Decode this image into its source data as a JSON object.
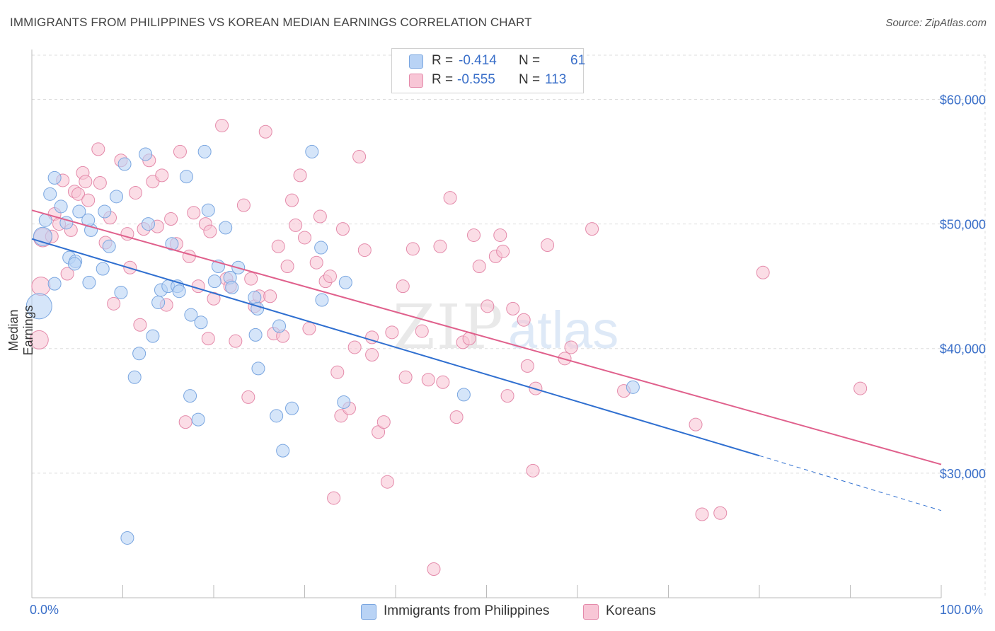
{
  "title": "IMMIGRANTS FROM PHILIPPINES VS KOREAN MEDIAN EARNINGS CORRELATION CHART",
  "source": "Source: ZipAtlas.com",
  "watermark": "ZIPatlas",
  "colors": {
    "blue_fill": "#b9d3f5",
    "blue_stroke": "#7aa6e0",
    "blue_line": "#2f6fd0",
    "pink_fill": "#f8c6d6",
    "pink_stroke": "#e48aaa",
    "pink_line": "#e0608c",
    "axis_text": "#3a6fc9",
    "grid": "#dddddd"
  },
  "legend": {
    "row1": {
      "r_label": "R =",
      "r_value": "-0.414",
      "n_label": "N =",
      "n_value": "61"
    },
    "row2": {
      "r_label": "R =",
      "r_value": "-0.555",
      "n_label": "N =",
      "n_value": "113"
    }
  },
  "bottom_legend": {
    "series1": "Immigrants from Philippines",
    "series2": "Koreans"
  },
  "chart_data": {
    "type": "scatter",
    "title": "IMMIGRANTS FROM PHILIPPINES VS KOREAN MEDIAN EARNINGS CORRELATION CHART",
    "xlabel": "",
    "ylabel": "Median Earnings",
    "x_tick_labels": [
      "0.0%",
      "100.0%"
    ],
    "y_tick_labels": [
      "$30,000",
      "$40,000",
      "$50,000",
      "$60,000"
    ],
    "y_ticks": [
      30000,
      40000,
      50000,
      60000
    ],
    "xlim": [
      0,
      100
    ],
    "ylim": [
      20000,
      64000
    ],
    "grid": "horizontal dashed",
    "legend_position": "top-center",
    "series": [
      {
        "name": "Immigrants from Philippines",
        "r": -0.414,
        "n": 61,
        "trend": {
          "x0": 0,
          "y0": 48800,
          "x1": 80,
          "y1": 31400,
          "dashed_to_x": 100,
          "dashed_to_y": 27000
        },
        "points": [
          [
            1.2,
            49000,
            2
          ],
          [
            0.8,
            43400,
            3
          ],
          [
            1.5,
            50300,
            1
          ],
          [
            2.0,
            52400,
            1
          ],
          [
            2.5,
            53700,
            1
          ],
          [
            3.2,
            51400,
            1
          ],
          [
            3.8,
            50100,
            1
          ],
          [
            4.1,
            47300,
            1
          ],
          [
            4.8,
            47000,
            1
          ],
          [
            2.5,
            45200,
            1
          ],
          [
            5.2,
            51000,
            1
          ],
          [
            6.5,
            49500,
            1
          ],
          [
            6.2,
            50300,
            1
          ],
          [
            7.8,
            46400,
            1
          ],
          [
            8.5,
            48200,
            1
          ],
          [
            8.0,
            51000,
            1
          ],
          [
            9.3,
            52200,
            1
          ],
          [
            10.2,
            54800,
            1
          ],
          [
            12.5,
            55600,
            1
          ],
          [
            12.8,
            50000,
            1
          ],
          [
            9.8,
            44500,
            1
          ],
          [
            6.3,
            45300,
            1
          ],
          [
            4.7,
            46800,
            1
          ],
          [
            13.9,
            43700,
            1
          ],
          [
            14.2,
            44700,
            1
          ],
          [
            15.0,
            45000,
            1
          ],
          [
            16.0,
            45000,
            1
          ],
          [
            16.2,
            44600,
            1
          ],
          [
            15.4,
            48400,
            1
          ],
          [
            17.0,
            53800,
            1
          ],
          [
            19.0,
            55800,
            1
          ],
          [
            19.4,
            51100,
            1
          ],
          [
            21.3,
            49700,
            1
          ],
          [
            20.5,
            46600,
            1
          ],
          [
            20.1,
            45400,
            1
          ],
          [
            21.8,
            45700,
            1
          ],
          [
            22.0,
            44900,
            1
          ],
          [
            22.7,
            46500,
            1
          ],
          [
            17.5,
            42700,
            1
          ],
          [
            18.6,
            42100,
            1
          ],
          [
            13.3,
            41000,
            1
          ],
          [
            11.8,
            39600,
            1
          ],
          [
            11.3,
            37700,
            1
          ],
          [
            17.4,
            36200,
            1
          ],
          [
            18.3,
            34300,
            1
          ],
          [
            24.5,
            44100,
            1
          ],
          [
            24.8,
            43200,
            1
          ],
          [
            24.6,
            41100,
            1
          ],
          [
            24.9,
            38400,
            1
          ],
          [
            27.2,
            41800,
            1
          ],
          [
            26.9,
            34600,
            1
          ],
          [
            27.6,
            31800,
            1
          ],
          [
            28.6,
            35200,
            1
          ],
          [
            30.8,
            55800,
            1
          ],
          [
            31.8,
            48100,
            1
          ],
          [
            31.9,
            43900,
            1
          ],
          [
            34.5,
            45300,
            1
          ],
          [
            34.3,
            35700,
            1
          ],
          [
            47.5,
            36300,
            1
          ],
          [
            66.1,
            36900,
            1
          ],
          [
            10.5,
            24800,
            1
          ]
        ]
      },
      {
        "name": "Koreans",
        "r": -0.555,
        "n": 113,
        "trend": {
          "x0": 0,
          "y0": 51100,
          "x1": 100,
          "y1": 30700
        },
        "points": [
          [
            0.8,
            40700,
            2
          ],
          [
            1.0,
            45000,
            2
          ],
          [
            1.2,
            48900,
            2
          ],
          [
            2.2,
            49000,
            1
          ],
          [
            2.5,
            50800,
            1
          ],
          [
            3.0,
            50000,
            1
          ],
          [
            3.4,
            53500,
            1
          ],
          [
            3.9,
            46000,
            1
          ],
          [
            4.3,
            49500,
            1
          ],
          [
            4.7,
            52600,
            1
          ],
          [
            5.1,
            52400,
            1
          ],
          [
            5.6,
            54100,
            1
          ],
          [
            5.9,
            53400,
            1
          ],
          [
            6.2,
            51900,
            1
          ],
          [
            7.5,
            53300,
            1
          ],
          [
            7.3,
            56000,
            1
          ],
          [
            8.1,
            48500,
            1
          ],
          [
            8.6,
            50500,
            1
          ],
          [
            9.0,
            43600,
            1
          ],
          [
            9.8,
            55100,
            1
          ],
          [
            10.5,
            49200,
            1
          ],
          [
            10.8,
            46500,
            1
          ],
          [
            11.4,
            52500,
            1
          ],
          [
            11.9,
            41900,
            1
          ],
          [
            12.3,
            49600,
            1
          ],
          [
            12.9,
            55100,
            1
          ],
          [
            13.3,
            53400,
            1
          ],
          [
            13.8,
            49800,
            1
          ],
          [
            14.3,
            53900,
            1
          ],
          [
            14.8,
            43500,
            1
          ],
          [
            15.3,
            50400,
            1
          ],
          [
            15.9,
            48400,
            1
          ],
          [
            16.3,
            55800,
            1
          ],
          [
            16.9,
            34100,
            1
          ],
          [
            17.3,
            47400,
            1
          ],
          [
            17.8,
            50900,
            1
          ],
          [
            18.3,
            45000,
            1
          ],
          [
            19.1,
            50000,
            1
          ],
          [
            19.4,
            40800,
            1
          ],
          [
            19.6,
            49400,
            1
          ],
          [
            20.0,
            44000,
            1
          ],
          [
            20.9,
            57900,
            1
          ],
          [
            21.4,
            45600,
            1
          ],
          [
            21.8,
            45000,
            1
          ],
          [
            22.4,
            40600,
            1
          ],
          [
            23.3,
            51500,
            1
          ],
          [
            23.8,
            36100,
            1
          ],
          [
            24.1,
            45600,
            1
          ],
          [
            24.5,
            43400,
            1
          ],
          [
            25.0,
            44200,
            1
          ],
          [
            25.7,
            57400,
            1
          ],
          [
            26.2,
            44200,
            1
          ],
          [
            26.6,
            41200,
            1
          ],
          [
            27.1,
            48200,
            1
          ],
          [
            27.6,
            41000,
            1
          ],
          [
            28.1,
            46600,
            1
          ],
          [
            28.6,
            51900,
            1
          ],
          [
            29.0,
            49900,
            1
          ],
          [
            29.5,
            53900,
            1
          ],
          [
            30.0,
            48900,
            1
          ],
          [
            30.5,
            41600,
            1
          ],
          [
            31.3,
            46900,
            1
          ],
          [
            31.7,
            50600,
            1
          ],
          [
            32.3,
            45400,
            1
          ],
          [
            32.8,
            45800,
            1
          ],
          [
            33.2,
            28000,
            1
          ],
          [
            33.6,
            38100,
            1
          ],
          [
            34.2,
            49600,
            1
          ],
          [
            34.0,
            34600,
            1
          ],
          [
            34.9,
            35200,
            1
          ],
          [
            35.5,
            40100,
            1
          ],
          [
            36.0,
            55400,
            1
          ],
          [
            36.6,
            47900,
            1
          ],
          [
            37.4,
            40900,
            1
          ],
          [
            37.4,
            39500,
            1
          ],
          [
            38.1,
            33300,
            1
          ],
          [
            38.7,
            34100,
            1
          ],
          [
            39.1,
            29300,
            1
          ],
          [
            39.6,
            41300,
            1
          ],
          [
            40.8,
            45000,
            1
          ],
          [
            41.1,
            37700,
            1
          ],
          [
            41.9,
            48000,
            1
          ],
          [
            42.9,
            41400,
            1
          ],
          [
            43.6,
            37500,
            1
          ],
          [
            44.2,
            22300,
            1
          ],
          [
            44.9,
            48200,
            1
          ],
          [
            45.2,
            37300,
            1
          ],
          [
            46.0,
            52100,
            1
          ],
          [
            46.7,
            34500,
            1
          ],
          [
            47.4,
            40500,
            1
          ],
          [
            48.1,
            40800,
            1
          ],
          [
            48.6,
            49100,
            1
          ],
          [
            49.2,
            46600,
            1
          ],
          [
            50.1,
            43400,
            1
          ],
          [
            51.0,
            47400,
            1
          ],
          [
            51.5,
            49100,
            1
          ],
          [
            51.8,
            47800,
            1
          ],
          [
            52.3,
            36200,
            1
          ],
          [
            52.9,
            43200,
            1
          ],
          [
            54.1,
            42300,
            1
          ],
          [
            54.5,
            38600,
            1
          ],
          [
            55.1,
            30200,
            1
          ],
          [
            55.4,
            36800,
            1
          ],
          [
            56.7,
            48300,
            1
          ],
          [
            59.3,
            40100,
            1
          ],
          [
            58.6,
            39200,
            1
          ],
          [
            61.6,
            49600,
            1
          ],
          [
            65.1,
            36600,
            1
          ],
          [
            73.0,
            33900,
            1
          ],
          [
            73.7,
            26700,
            1
          ],
          [
            75.7,
            26800,
            1
          ],
          [
            91.1,
            36800,
            1
          ],
          [
            80.4,
            46100,
            1
          ]
        ]
      }
    ]
  }
}
